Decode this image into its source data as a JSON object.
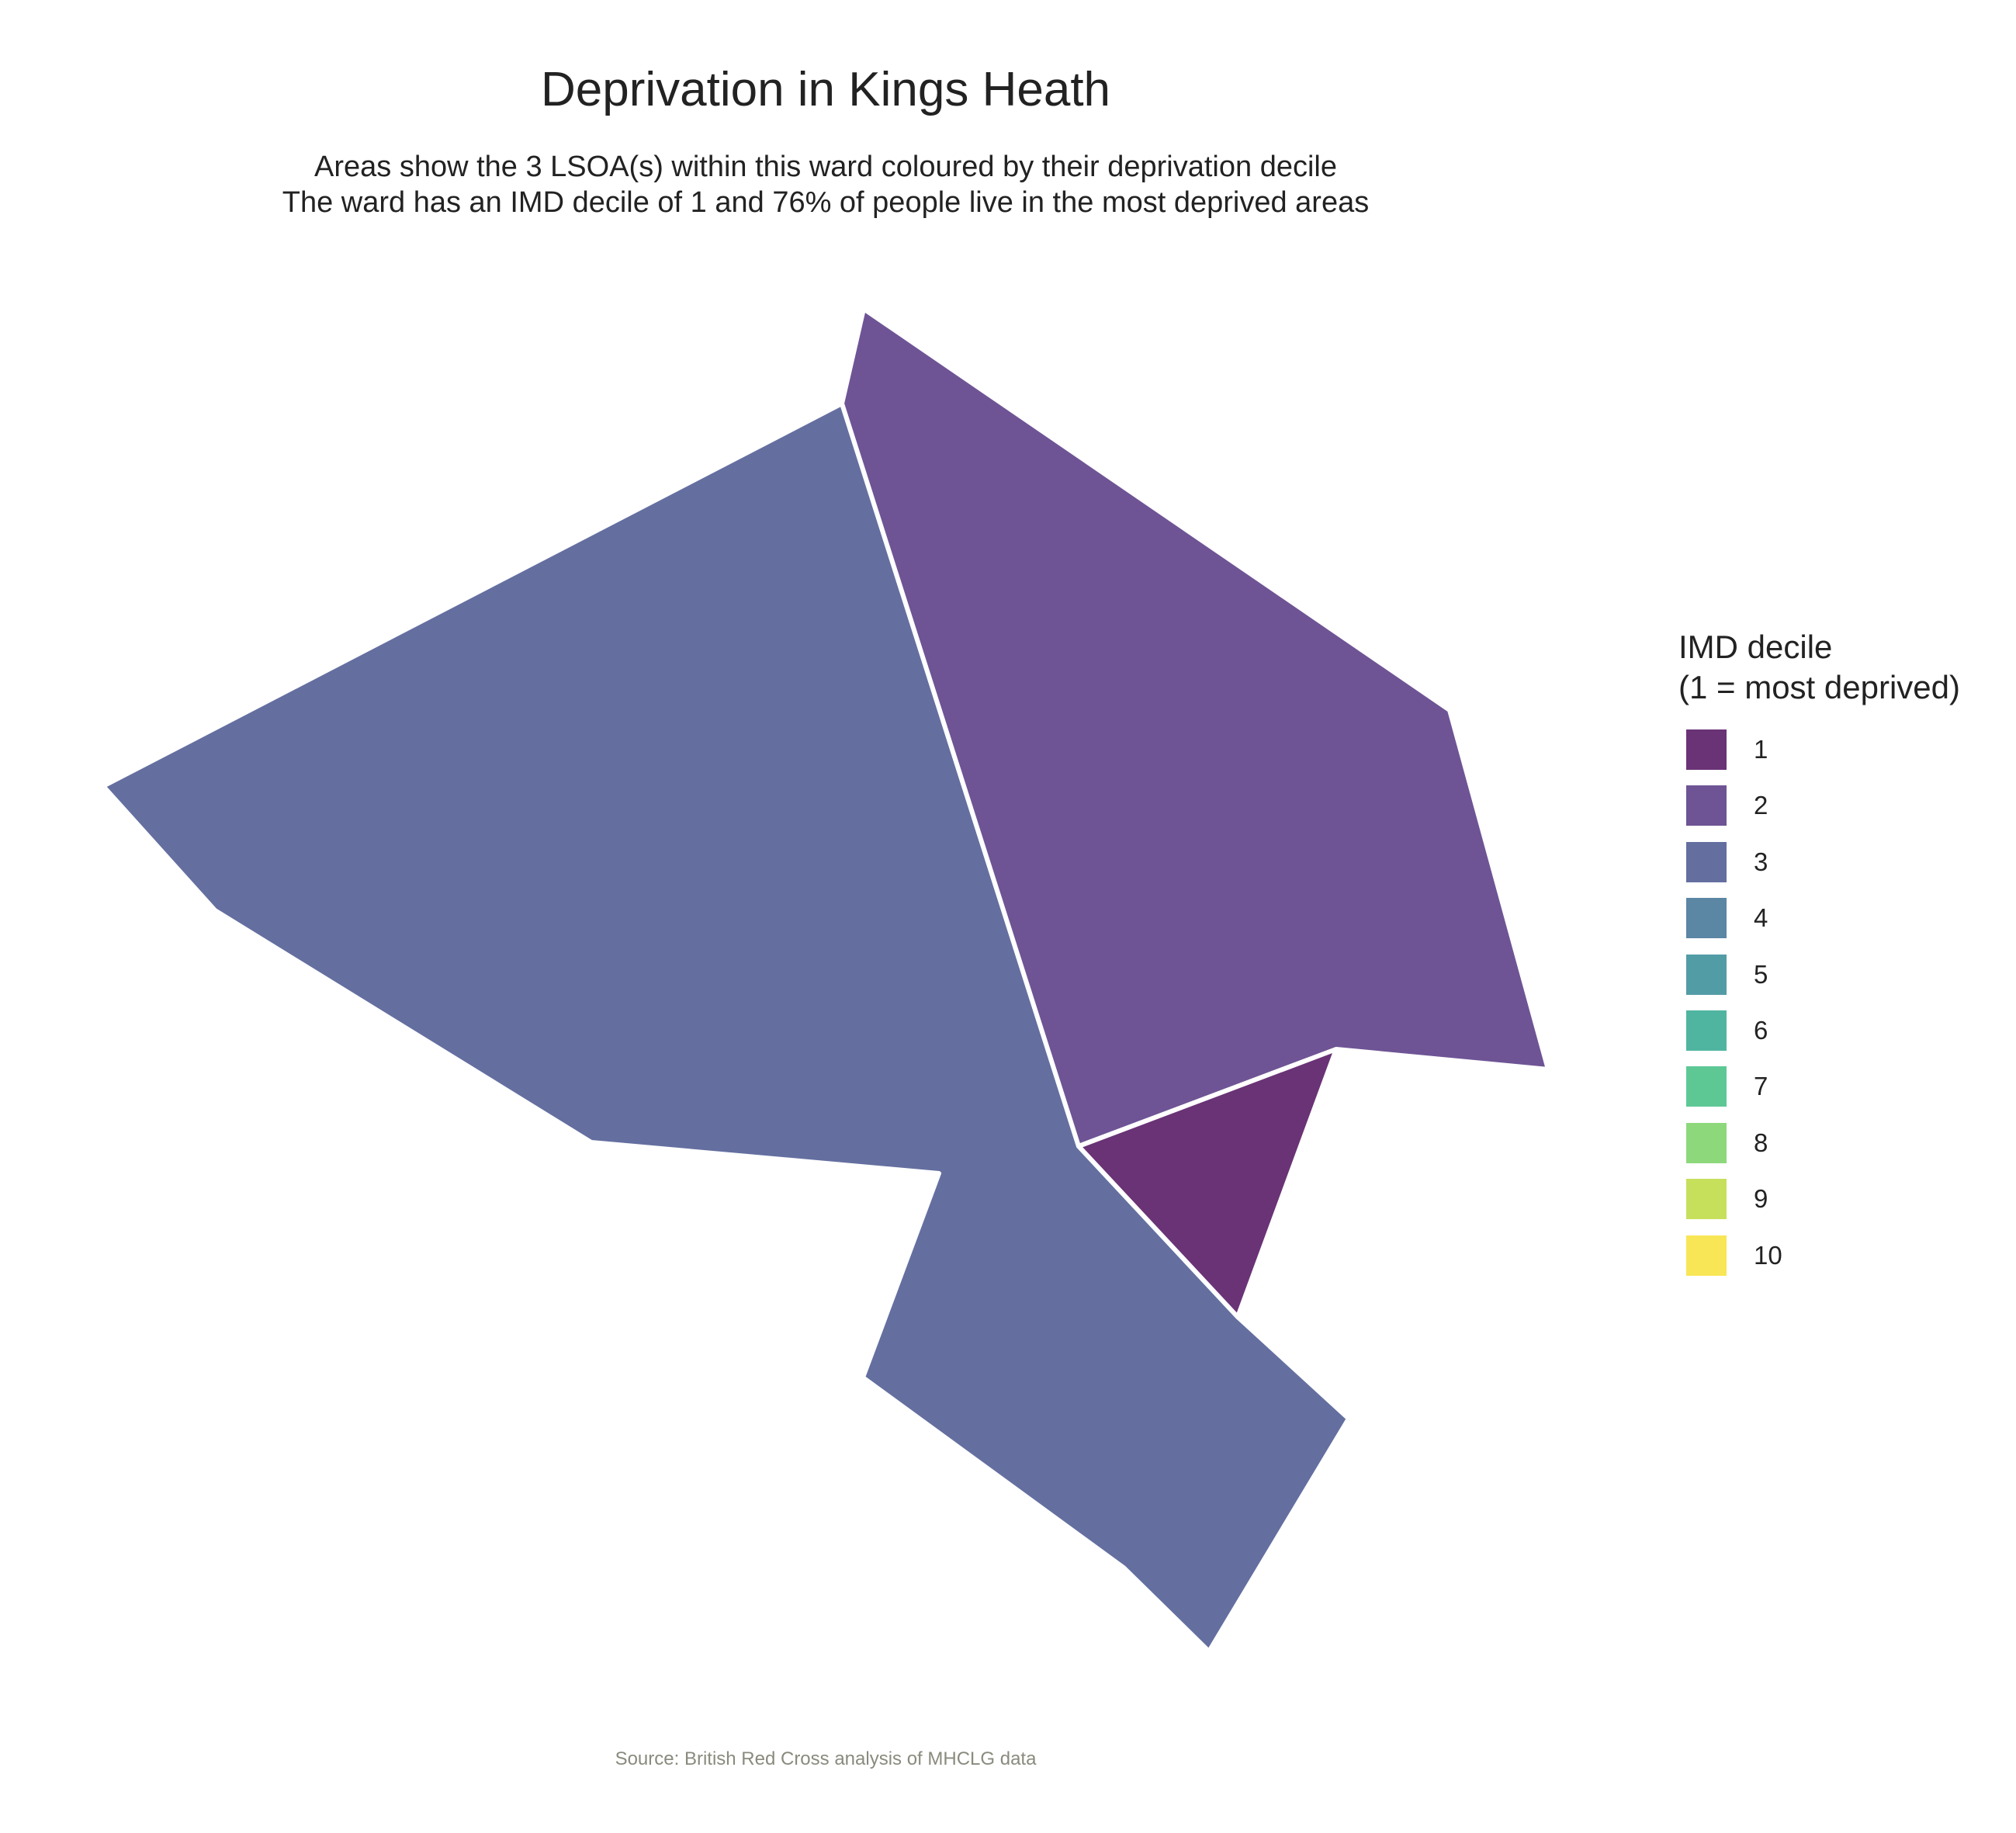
{
  "title": "Deprivation in Kings Heath",
  "subtitle": {
    "line1": "Areas show the 3 LSOA(s) within this ward coloured by their deprivation decile",
    "line2": "The ward has an IMD decile of 1 and 76% of people live in the most deprived areas"
  },
  "legend": {
    "title_line1": "IMD decile",
    "title_line2": "(1 = most deprived)",
    "items": [
      {
        "label": "1",
        "color": "#6a3376"
      },
      {
        "label": "2",
        "color": "#6e5495"
      },
      {
        "label": "3",
        "color": "#646fa0"
      },
      {
        "label": "4",
        "color": "#5b86a4"
      },
      {
        "label": "5",
        "color": "#529ca6"
      },
      {
        "label": "6",
        "color": "#50b5a0"
      },
      {
        "label": "7",
        "color": "#5ec895"
      },
      {
        "label": "8",
        "color": "#8ed87c"
      },
      {
        "label": "9",
        "color": "#c6e05b"
      },
      {
        "label": "10",
        "color": "#f8e656"
      }
    ]
  },
  "areas": [
    {
      "name": "lsoa-west",
      "decile": 3,
      "color": "#646fa0"
    },
    {
      "name": "lsoa-northeast",
      "decile": 2,
      "color": "#6e5495"
    },
    {
      "name": "lsoa-southeast-small",
      "decile": 1,
      "color": "#6a3376"
    }
  ],
  "caption": "Source: British Red Cross analysis of MHCLG data"
}
